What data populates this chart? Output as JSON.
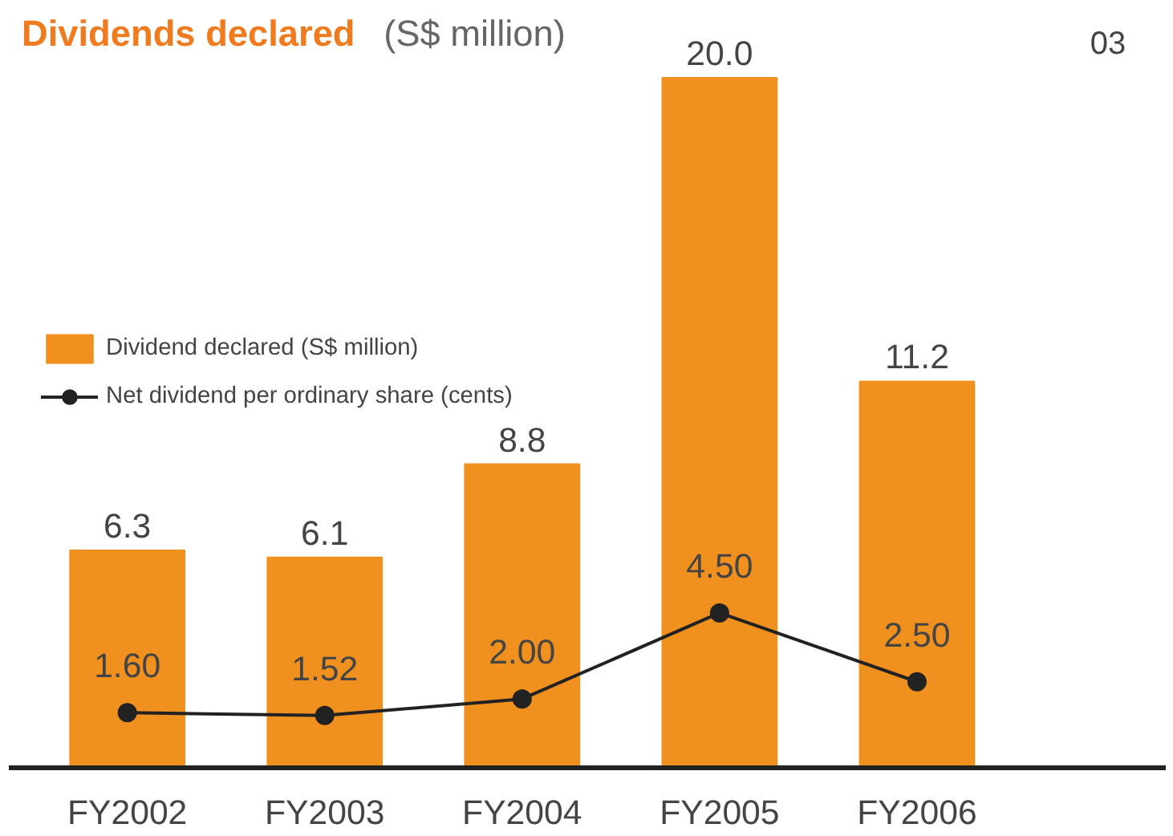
{
  "chart_data": {
    "type": "bar",
    "title": "Dividends declared",
    "subtitle": "(S$ million)",
    "annotations": [
      "03"
    ],
    "categories": [
      "FY2002",
      "FY2003",
      "FY2004",
      "FY2005",
      "FY2006"
    ],
    "series": [
      {
        "name": "Dividend declared (S$ million)",
        "color": "#f0901e",
        "values": [
          6.3,
          6.1,
          8.8,
          20.0,
          11.2
        ],
        "value_labels": [
          "6.3",
          "6.1",
          "8.8",
          "20.0",
          "11.2"
        ]
      },
      {
        "name": "Net dividend per ordinary share (cents)",
        "type": "line",
        "axis": "y2",
        "color": "#222222",
        "values": [
          1.6,
          1.52,
          2.0,
          4.5,
          2.5
        ],
        "value_labels": [
          "1.60",
          "1.52",
          "2.00",
          "4.50",
          "2.50"
        ]
      }
    ],
    "legend": "top left",
    "marker": "circle",
    "grid": false
  }
}
